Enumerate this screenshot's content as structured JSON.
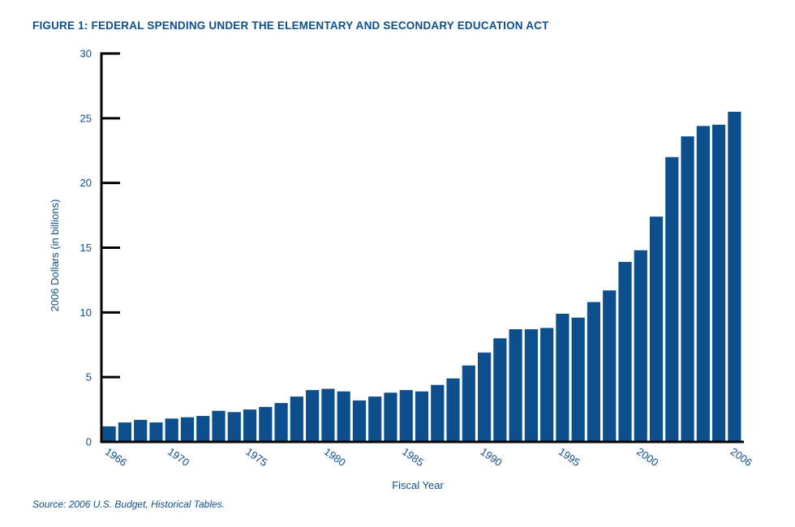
{
  "chart_data": {
    "type": "bar",
    "title": "FIGURE 1: FEDERAL SPENDING UNDER THE ELEMENTARY AND SECONDARY EDUCATION ACT",
    "xlabel": "Fiscal Year",
    "ylabel": "2006 Dollars (in billions)",
    "source": "Source: 2006 U.S. Budget, Historical Tables.",
    "ylim": [
      0,
      30
    ],
    "yticks": [
      0,
      5,
      10,
      15,
      20,
      25,
      30
    ],
    "xtick_labels": [
      "1966",
      "1970",
      "1975",
      "1980",
      "1985",
      "1990",
      "1995",
      "2000",
      "2006"
    ],
    "categories": [
      "1966",
      "1967",
      "1968",
      "1969",
      "1970",
      "1971",
      "1972",
      "1973",
      "1974",
      "1975",
      "1976",
      "1977",
      "1978",
      "1979",
      "1980",
      "1981",
      "1982",
      "1983",
      "1984",
      "1985",
      "1986",
      "1987",
      "1988",
      "1989",
      "1990",
      "1991",
      "1992",
      "1993",
      "1994",
      "1995",
      "1996",
      "1997",
      "1998",
      "1999",
      "2000",
      "2001",
      "2002",
      "2003",
      "2004",
      "2005",
      "2006"
    ],
    "values": [
      1.2,
      1.5,
      1.7,
      1.5,
      1.8,
      1.9,
      2.0,
      2.4,
      2.3,
      2.5,
      2.7,
      3.0,
      3.5,
      4.0,
      4.1,
      3.9,
      3.2,
      3.5,
      3.8,
      4.0,
      3.9,
      4.4,
      4.9,
      5.9,
      6.9,
      8.0,
      8.7,
      8.7,
      8.8,
      9.9,
      9.6,
      10.8,
      11.7,
      13.9,
      14.8,
      17.4,
      22.0,
      23.6,
      24.4,
      24.5,
      25.5
    ],
    "bar_color": "#0d4f8c",
    "axis_color": "#000000",
    "grid": false,
    "legend": "none"
  }
}
